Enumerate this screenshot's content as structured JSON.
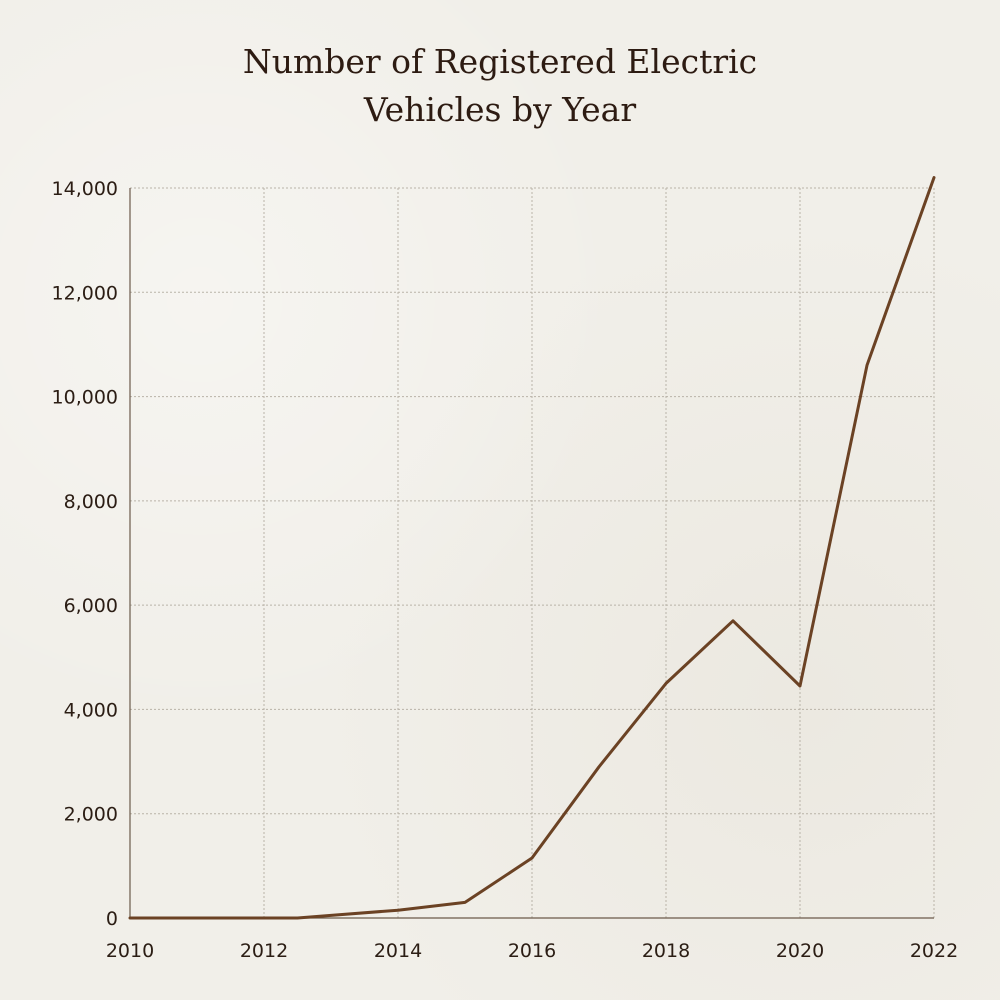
{
  "chart_data": {
    "type": "line",
    "title_lines": [
      "Number of Registered Electric",
      "Vehicles by Year"
    ],
    "xlabel": "",
    "ylabel": "",
    "xlim": [
      2010,
      2022
    ],
    "ylim": [
      0,
      14000
    ],
    "x_ticks": [
      2010,
      2012,
      2014,
      2016,
      2018,
      2020,
      2022
    ],
    "x_tick_labels": [
      "2010",
      "2012",
      "2014",
      "2016",
      "2018",
      "2020",
      "2022"
    ],
    "y_ticks": [
      0,
      2000,
      4000,
      6000,
      8000,
      10000,
      12000,
      14000
    ],
    "y_tick_labels": [
      "0",
      "2,000",
      "4,000",
      "6,000",
      "8,000",
      "10,000",
      "12,000",
      "14,000"
    ],
    "grid": true,
    "legend": null,
    "series": [
      {
        "name": "Registered Electric Vehicles",
        "color": "#6b4224",
        "x": [
          2010,
          2011,
          2012,
          2012.5,
          2013,
          2014,
          2015,
          2016,
          2017,
          2018,
          2019,
          2020,
          2021,
          2022
        ],
        "values": [
          0,
          0,
          0,
          0,
          50,
          150,
          300,
          1150,
          2900,
          4500,
          5700,
          4450,
          10600,
          14200
        ]
      }
    ]
  }
}
